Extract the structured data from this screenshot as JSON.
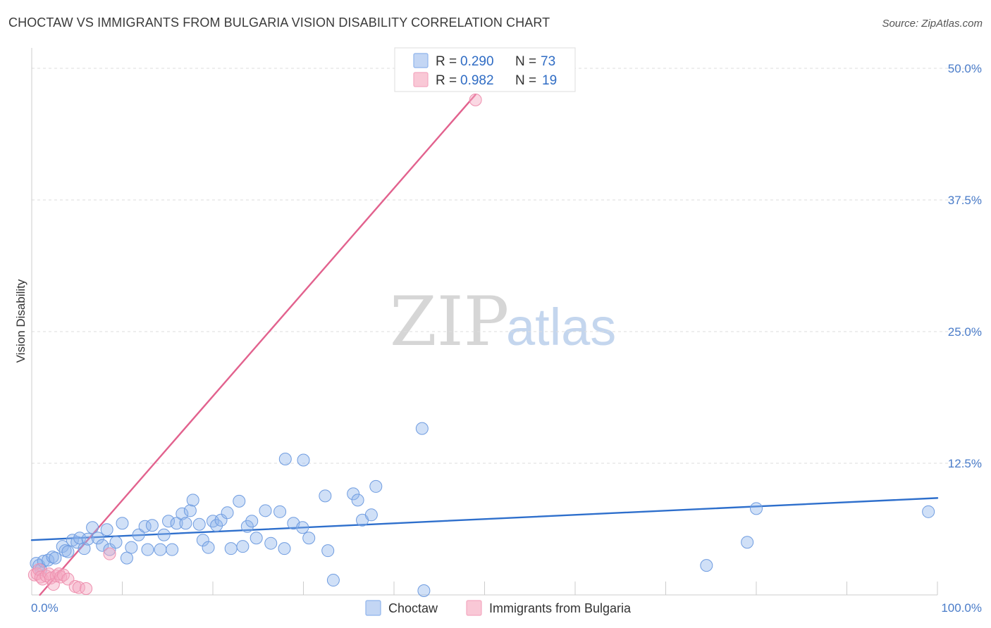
{
  "header": {
    "title": "CHOCTAW VS IMMIGRANTS FROM BULGARIA VISION DISABILITY CORRELATION CHART",
    "source": "Source: ZipAtlas.com"
  },
  "watermark": {
    "zip": "ZIP",
    "atlas": "atlas"
  },
  "legend": {
    "r_label": "R =",
    "n_label": "N =",
    "series": [
      {
        "r": "0.290",
        "n": "73"
      },
      {
        "r": "0.982",
        "n": "19"
      }
    ]
  },
  "chart_data": {
    "type": "scatter",
    "title": "CHOCTAW VS IMMIGRANTS FROM BULGARIA VISION DISABILITY CORRELATION CHART",
    "xlabel": "",
    "ylabel": "Vision Disability",
    "xlim": [
      0,
      100
    ],
    "ylim": [
      0,
      52
    ],
    "x_tick_labels": [
      "0.0%",
      "100.0%"
    ],
    "y_ticks": [
      12.5,
      25.0,
      37.5,
      50.0
    ],
    "y_tick_labels": [
      "12.5%",
      "25.0%",
      "37.5%",
      "50.0%"
    ],
    "grid": true,
    "legend_position": "top-center",
    "series": [
      {
        "name": "Choctaw",
        "color": "#8fb4ec",
        "line_color": "#2e6fcc",
        "r": 0.29,
        "n": 73,
        "trend": {
          "x": [
            0,
            100
          ],
          "y": [
            5.2,
            9.2
          ]
        },
        "points": [
          [
            0.5,
            3.0
          ],
          [
            0.8,
            2.8
          ],
          [
            1.0,
            2.4
          ],
          [
            1.3,
            3.2
          ],
          [
            1.8,
            3.3
          ],
          [
            2.3,
            3.6
          ],
          [
            2.6,
            3.5
          ],
          [
            3.4,
            4.6
          ],
          [
            3.7,
            4.2
          ],
          [
            4.0,
            4.1
          ],
          [
            4.5,
            5.2
          ],
          [
            5.0,
            5.0
          ],
          [
            5.3,
            5.4
          ],
          [
            5.8,
            4.4
          ],
          [
            6.2,
            5.3
          ],
          [
            6.7,
            6.4
          ],
          [
            7.3,
            5.4
          ],
          [
            7.8,
            4.7
          ],
          [
            8.3,
            6.2
          ],
          [
            8.6,
            4.3
          ],
          [
            9.3,
            5.0
          ],
          [
            10.0,
            6.8
          ],
          [
            10.5,
            3.5
          ],
          [
            11.0,
            4.5
          ],
          [
            11.8,
            5.7
          ],
          [
            12.5,
            6.5
          ],
          [
            12.8,
            4.3
          ],
          [
            13.3,
            6.6
          ],
          [
            14.2,
            4.3
          ],
          [
            14.6,
            5.7
          ],
          [
            15.1,
            7.0
          ],
          [
            15.5,
            4.3
          ],
          [
            16.0,
            6.8
          ],
          [
            16.6,
            7.7
          ],
          [
            17.0,
            6.8
          ],
          [
            17.5,
            8.0
          ],
          [
            17.8,
            9.0
          ],
          [
            18.5,
            6.7
          ],
          [
            18.9,
            5.2
          ],
          [
            19.5,
            4.5
          ],
          [
            20.0,
            7.0
          ],
          [
            20.4,
            6.6
          ],
          [
            20.9,
            7.1
          ],
          [
            21.6,
            7.8
          ],
          [
            22.0,
            4.4
          ],
          [
            22.9,
            8.9
          ],
          [
            23.3,
            4.6
          ],
          [
            23.8,
            6.5
          ],
          [
            24.3,
            7.0
          ],
          [
            24.8,
            5.4
          ],
          [
            25.8,
            8.0
          ],
          [
            26.4,
            4.9
          ],
          [
            27.4,
            7.9
          ],
          [
            27.9,
            4.4
          ],
          [
            28.0,
            12.9
          ],
          [
            28.9,
            6.8
          ],
          [
            29.9,
            6.4
          ],
          [
            30.0,
            12.8
          ],
          [
            30.6,
            5.4
          ],
          [
            32.4,
            9.4
          ],
          [
            32.7,
            4.2
          ],
          [
            33.3,
            1.4
          ],
          [
            35.5,
            9.6
          ],
          [
            36.0,
            9.0
          ],
          [
            36.5,
            7.1
          ],
          [
            37.5,
            7.6
          ],
          [
            38.0,
            10.3
          ],
          [
            43.1,
            15.8
          ],
          [
            43.3,
            0.4
          ],
          [
            74.5,
            2.8
          ],
          [
            79.0,
            5.0
          ],
          [
            80.0,
            8.2
          ],
          [
            99.0,
            7.9
          ]
        ]
      },
      {
        "name": "Immigrants from Bulgaria",
        "color": "#f4a8c0",
        "line_color": "#e2628e",
        "r": 0.982,
        "n": 19,
        "trend": {
          "x": [
            0.9,
            49.0
          ],
          "y": [
            0.0,
            47.5
          ]
        },
        "points": [
          [
            0.3,
            1.9
          ],
          [
            0.6,
            2.0
          ],
          [
            0.8,
            2.4
          ],
          [
            1.0,
            1.7
          ],
          [
            1.2,
            1.5
          ],
          [
            1.6,
            1.8
          ],
          [
            1.9,
            2.0
          ],
          [
            2.1,
            1.6
          ],
          [
            2.4,
            1.0
          ],
          [
            2.7,
            1.8
          ],
          [
            3.0,
            2.0
          ],
          [
            3.2,
            1.7
          ],
          [
            3.5,
            1.9
          ],
          [
            4.0,
            1.5
          ],
          [
            4.8,
            0.8
          ],
          [
            5.2,
            0.7
          ],
          [
            6.0,
            0.6
          ],
          [
            8.6,
            3.9
          ],
          [
            49.0,
            47.0
          ]
        ]
      }
    ]
  }
}
